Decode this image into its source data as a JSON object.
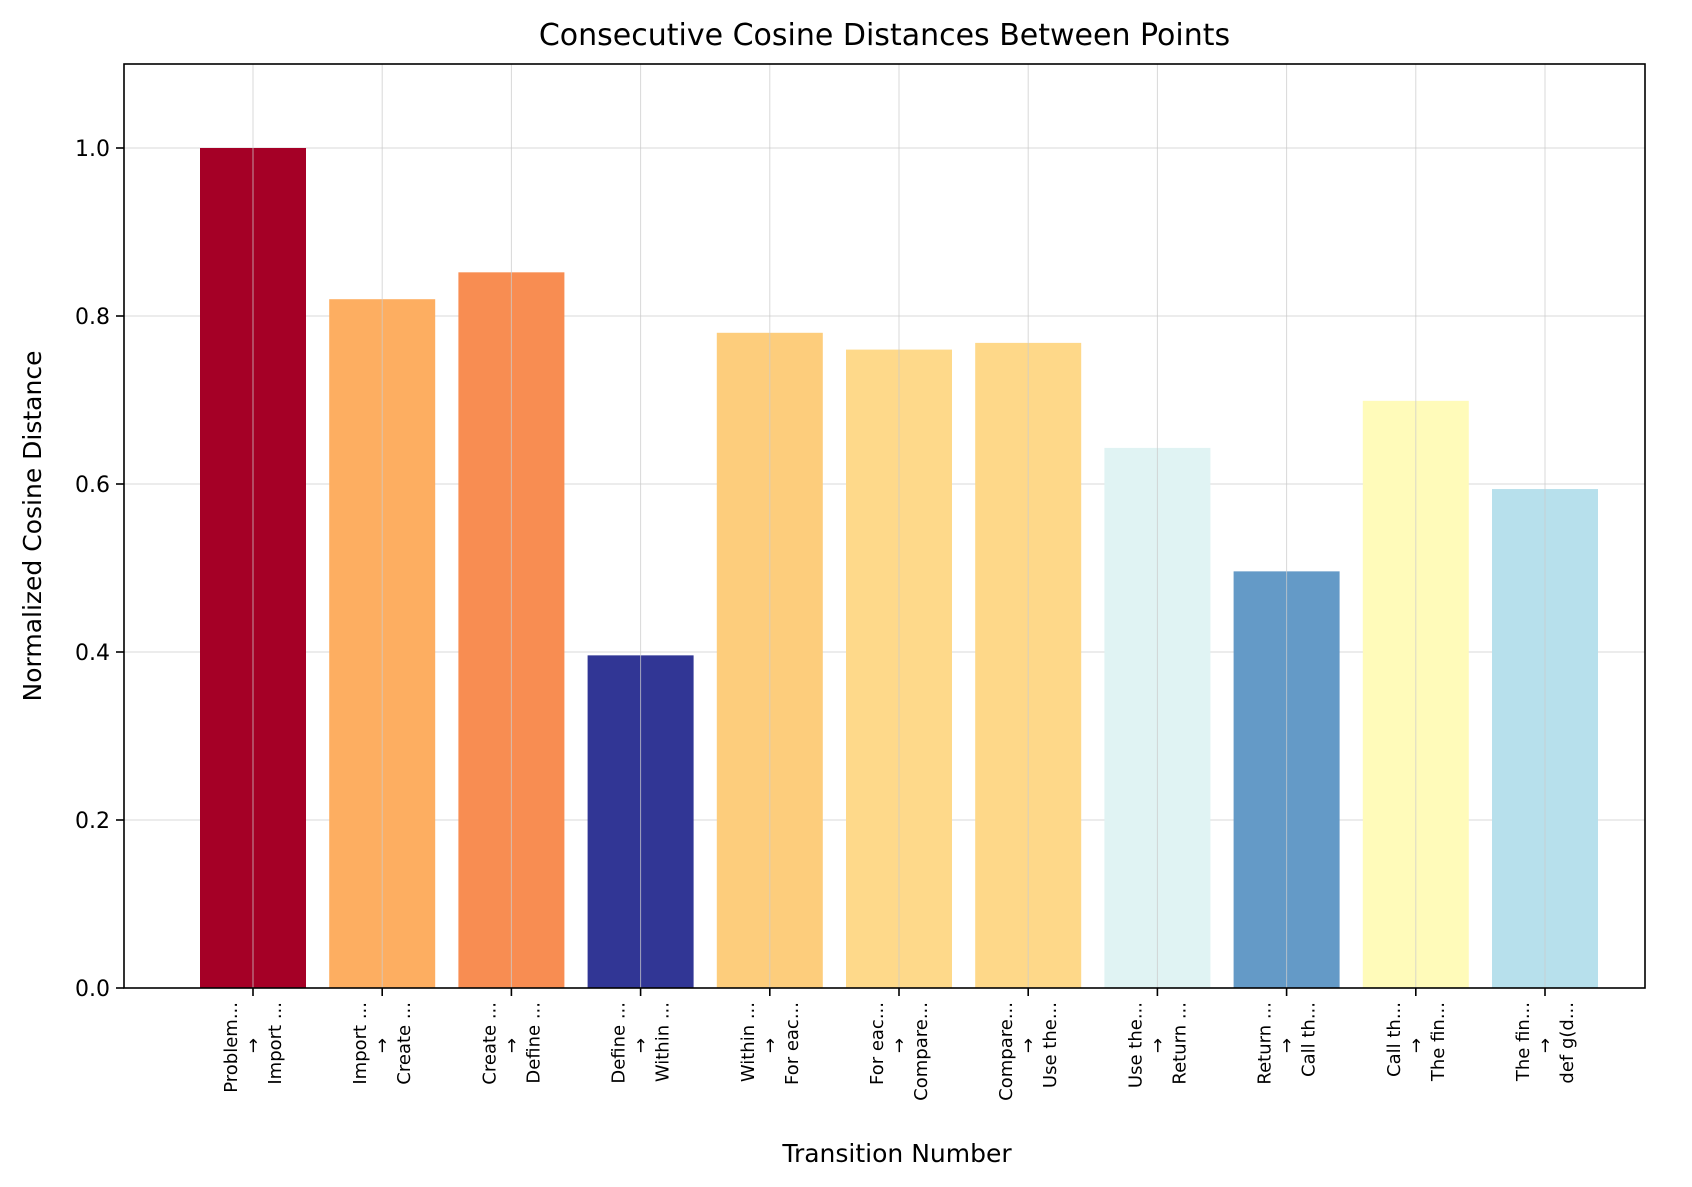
{
  "chart_data": {
    "type": "bar",
    "title": "Consecutive Cosine Distances Between Points",
    "xlabel": "Transition Number",
    "ylabel": "Normalized Cosine Distance",
    "ylim": [
      0,
      1.1
    ],
    "yticks": [
      "0.0",
      "0.2",
      "0.4",
      "0.6",
      "0.8",
      "1.0"
    ],
    "grid": true,
    "categories": [
      [
        "Problem...",
        "→",
        "Import ..."
      ],
      [
        "Import ...",
        "→",
        "Create ..."
      ],
      [
        "Create ...",
        "→",
        "Define ..."
      ],
      [
        "Define ...",
        "→",
        "Within ..."
      ],
      [
        "Within ...",
        "→",
        "For eac..."
      ],
      [
        "For eac...",
        "→",
        "Compare..."
      ],
      [
        "Compare...",
        "→",
        "Use the..."
      ],
      [
        "Use the...",
        "→",
        "Return ..."
      ],
      [
        "Return ...",
        "→",
        "Call th..."
      ],
      [
        "Call th...",
        "→",
        "The fin..."
      ],
      [
        "The fin...",
        "→",
        "def g(d..."
      ]
    ],
    "values": [
      1.0,
      0.82,
      0.852,
      0.396,
      0.78,
      0.76,
      0.768,
      0.643,
      0.496,
      0.699,
      0.594
    ],
    "colors": [
      "#a50026",
      "#fdae61",
      "#f88d52",
      "#313695",
      "#fdcd7c",
      "#fed98a",
      "#fed889",
      "#e0f3f3",
      "#649ac7",
      "#fffbba",
      "#b7e0ec"
    ]
  }
}
